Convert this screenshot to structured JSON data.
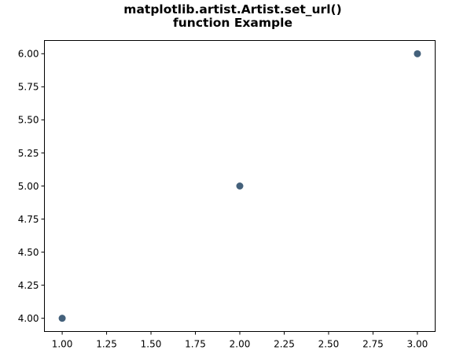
{
  "chart_data": {
    "type": "scatter",
    "title_lines": [
      "matplotlib.artist.Artist.set_url()",
      "function Example"
    ],
    "x": [
      1,
      2,
      3
    ],
    "y": [
      4,
      5,
      6
    ],
    "xlim": [
      0.9,
      3.1
    ],
    "ylim": [
      3.9,
      6.1
    ],
    "xticks": [
      "1.00",
      "1.25",
      "1.50",
      "1.75",
      "2.00",
      "2.25",
      "2.50",
      "2.75",
      "3.00"
    ],
    "yticks": [
      "4.00",
      "4.25",
      "4.50",
      "4.75",
      "5.00",
      "5.25",
      "5.50",
      "5.75",
      "6.00"
    ],
    "marker_color": "#44617b",
    "grid": false,
    "xlabel": "",
    "ylabel": ""
  }
}
